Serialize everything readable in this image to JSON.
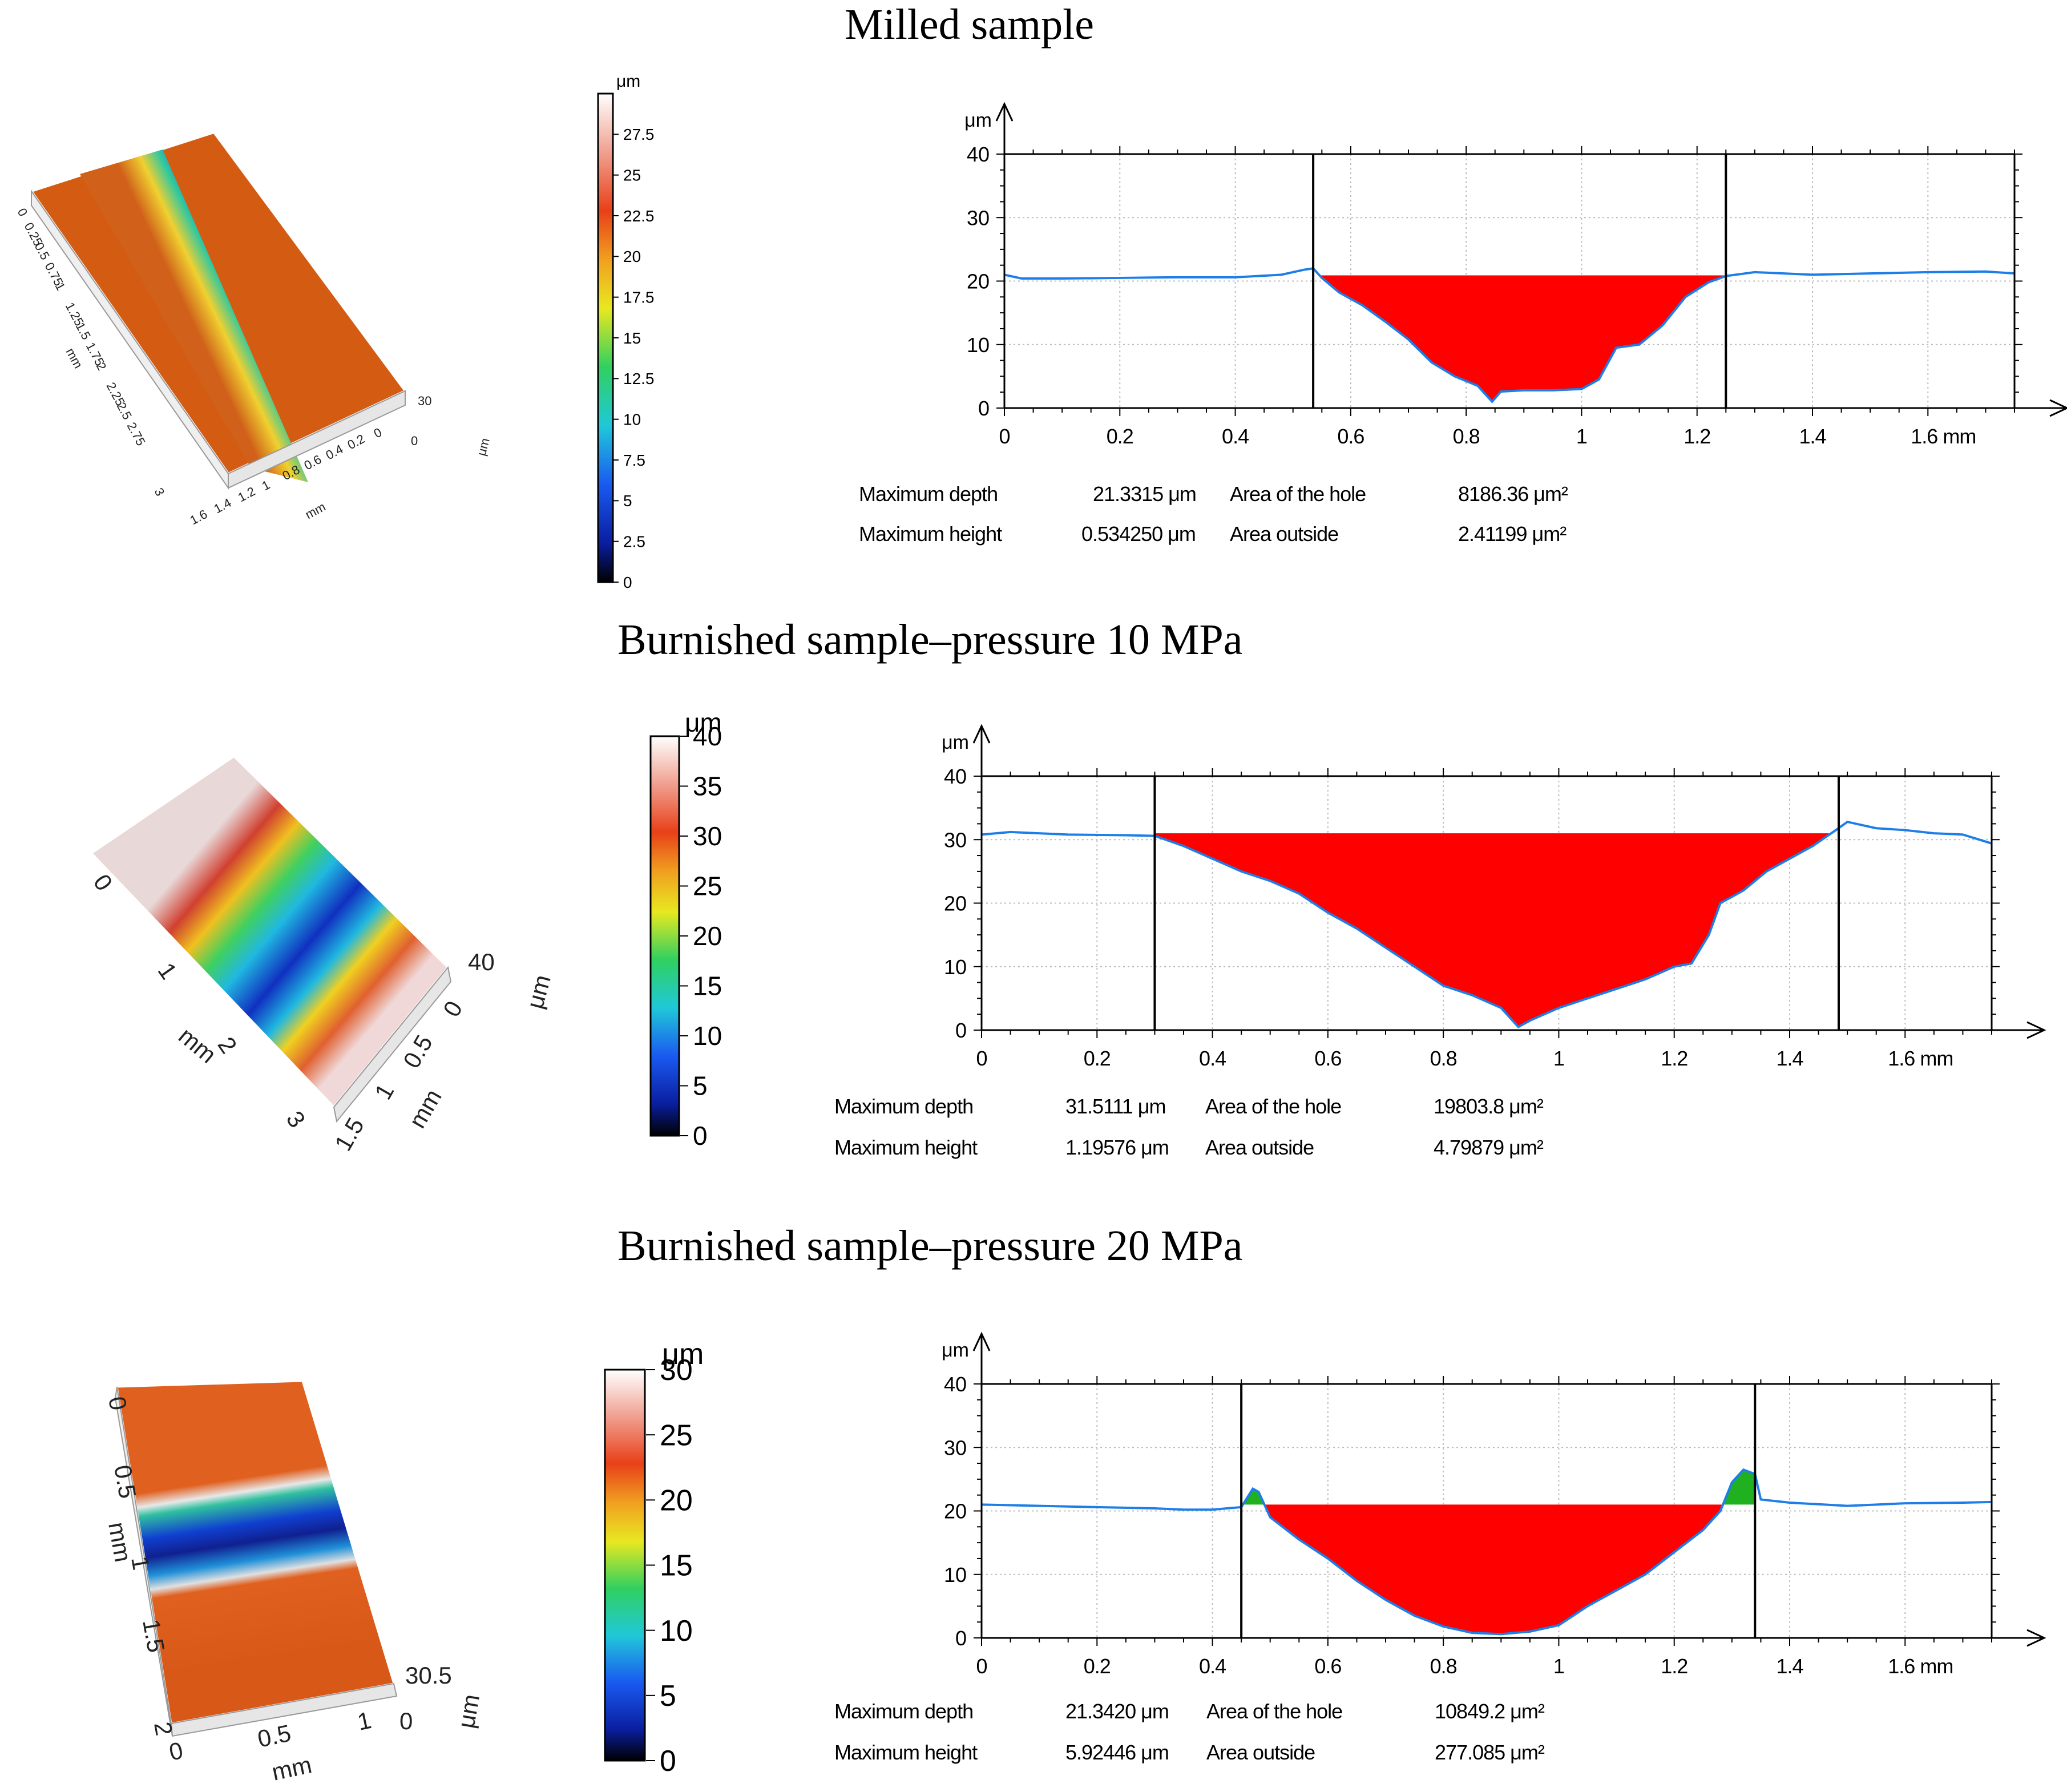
{
  "sections": [
    {
      "title": "Milled sample",
      "surface": {
        "axis_short_label": "mm",
        "axis_long_label": "mm",
        "z_label": "μm",
        "short_ticks": [
          "1.6",
          "1.4",
          "1.2",
          "1",
          "0.8",
          "0.6",
          "0.4",
          "0.2",
          "0"
        ],
        "long_ticks": [
          "0",
          "0.25",
          "0.5",
          "0.75",
          "1",
          "1.25",
          "1.5",
          "1.75",
          "2",
          "2.25",
          "2.5",
          "2.75",
          "3"
        ],
        "z_ticks": [
          "30",
          "0"
        ]
      },
      "scale": {
        "unit": "μm",
        "max": 30,
        "ticks": [
          "27.5",
          "25",
          "22.5",
          "20",
          "17.5",
          "15",
          "12.5",
          "10",
          "7.5",
          "5",
          "2.5",
          "0"
        ]
      },
      "measurements": {
        "rows": [
          {
            "label1": "Maximum depth",
            "value1": "21.3315 μm",
            "label2": "Area of the hole",
            "value2": "8186.36 μm²"
          },
          {
            "label1": "Maximum height",
            "value1": "0.534250 μm",
            "label2": "Area outside",
            "value2": "2.41199 μm²"
          }
        ]
      }
    },
    {
      "title": "Burnished sample–pressure 10 MPa",
      "surface": {
        "axis_short_label": "mm",
        "axis_long_label": "mm",
        "z_label": "μm",
        "short_ticks": [
          "1.5",
          "1",
          "0.5",
          "0"
        ],
        "long_ticks": [
          "0",
          "1",
          "2",
          "3"
        ],
        "z_ticks": [
          "40",
          "0"
        ]
      },
      "scale": {
        "unit": "μm",
        "max": 40,
        "ticks": [
          "40",
          "35",
          "30",
          "25",
          "20",
          "15",
          "10",
          "5",
          "0"
        ]
      },
      "measurements": {
        "rows": [
          {
            "label1": "Maximum depth",
            "value1": "31.5111 μm",
            "label2": "Area of the hole",
            "value2": "19803.8 μm²"
          },
          {
            "label1": "Maximum height",
            "value1": "1.19576 μm",
            "label2": "Area outside",
            "value2": "4.79879 μm²"
          }
        ]
      }
    },
    {
      "title": "Burnished sample–pressure 20 MPa",
      "surface": {
        "axis_short_label": "mm",
        "axis_long_label": "mm",
        "z_label": "μm",
        "short_ticks": [
          "0",
          "0.5",
          "1"
        ],
        "long_ticks": [
          "0",
          "0.5",
          "1",
          "1.5",
          "2"
        ],
        "z_ticks": [
          "30.5",
          "0"
        ]
      },
      "scale": {
        "unit": "μm",
        "max": 30,
        "ticks": [
          "30",
          "25",
          "20",
          "15",
          "10",
          "5",
          "0"
        ]
      },
      "measurements": {
        "rows": [
          {
            "label1": "Maximum depth",
            "value1": "21.3420 μm",
            "label2": "Area of the hole",
            "value2": "10849.2 μm²"
          },
          {
            "label1": "Maximum height",
            "value1": "5.92446 μm",
            "label2": "Area outside",
            "value2": "277.085 μm²"
          }
        ]
      }
    }
  ],
  "chart_data": [
    {
      "type": "area",
      "title": "Milled sample",
      "xlabel": "mm",
      "ylabel": "μm",
      "xlim": [
        0,
        1.75
      ],
      "ylim": [
        0,
        40
      ],
      "x_ticks": [
        "0",
        "0.2",
        "0.4",
        "0.6",
        "0.8",
        "1",
        "1.2",
        "1.4",
        "1.6 mm"
      ],
      "y_ticks": [
        "0",
        "10",
        "20",
        "30",
        "40"
      ],
      "cursors": [
        0.535,
        1.25
      ],
      "reference_level": 20.9,
      "profile": {
        "x": [
          0,
          0.03,
          0.1,
          0.2,
          0.3,
          0.4,
          0.48,
          0.52,
          0.535,
          0.55,
          0.58,
          0.62,
          0.66,
          0.7,
          0.74,
          0.78,
          0.82,
          0.845,
          0.86,
          0.9,
          0.95,
          1.0,
          1.03,
          1.06,
          1.1,
          1.14,
          1.18,
          1.22,
          1.25,
          1.3,
          1.4,
          1.5,
          1.6,
          1.7,
          1.75
        ],
        "y": [
          21.0,
          20.4,
          20.4,
          20.5,
          20.6,
          20.6,
          21.0,
          21.8,
          22.0,
          20.5,
          18.2,
          16.2,
          13.6,
          10.8,
          7.2,
          5.0,
          3.5,
          1.0,
          2.6,
          2.8,
          2.8,
          3.0,
          4.5,
          9.5,
          10.0,
          13.0,
          17.5,
          19.8,
          20.8,
          21.4,
          21.0,
          21.2,
          21.4,
          21.5,
          21.2
        ]
      },
      "outside_regions": []
    },
    {
      "type": "area",
      "title": "Burnished sample–pressure 10 MPa",
      "xlabel": "mm",
      "ylabel": "μm",
      "xlim": [
        0,
        1.75
      ],
      "ylim": [
        0,
        40
      ],
      "x_ticks": [
        "0",
        "0.2",
        "0.4",
        "0.6",
        "0.8",
        "1",
        "1.2",
        "1.4",
        "1.6 mm"
      ],
      "y_ticks": [
        "0",
        "10",
        "20",
        "30",
        "40"
      ],
      "cursors": [
        0.3,
        1.485
      ],
      "reference_level": 31.0,
      "profile": {
        "x": [
          0,
          0.05,
          0.15,
          0.25,
          0.3,
          0.35,
          0.4,
          0.45,
          0.5,
          0.55,
          0.6,
          0.65,
          0.7,
          0.75,
          0.8,
          0.85,
          0.9,
          0.93,
          0.95,
          1.0,
          1.05,
          1.1,
          1.15,
          1.2,
          1.23,
          1.26,
          1.28,
          1.32,
          1.36,
          1.4,
          1.44,
          1.48,
          1.5,
          1.55,
          1.6,
          1.65,
          1.7,
          1.75
        ],
        "y": [
          30.8,
          31.2,
          30.8,
          30.7,
          30.6,
          29.0,
          27.0,
          25.0,
          23.5,
          21.5,
          18.5,
          16.0,
          13.0,
          10.0,
          7.0,
          5.5,
          3.5,
          0.5,
          1.5,
          3.5,
          5.0,
          6.5,
          8.0,
          10.0,
          10.5,
          15.0,
          20.0,
          22.0,
          25.0,
          27.0,
          29.0,
          31.5,
          32.8,
          31.8,
          31.5,
          31.0,
          30.8,
          29.4
        ]
      },
      "outside_regions": []
    },
    {
      "type": "area",
      "title": "Burnished sample–pressure 20 MPa",
      "xlabel": "mm",
      "ylabel": "μm",
      "xlim": [
        0,
        1.75
      ],
      "ylim": [
        0,
        40
      ],
      "x_ticks": [
        "0",
        "0.2",
        "0.4",
        "0.6",
        "0.8",
        "1",
        "1.2",
        "1.4",
        "1.6 mm"
      ],
      "y_ticks": [
        "0",
        "10",
        "20",
        "30",
        "40"
      ],
      "cursors": [
        0.45,
        1.34
      ],
      "reference_level": 21.0,
      "profile": {
        "x": [
          0,
          0.1,
          0.2,
          0.3,
          0.35,
          0.4,
          0.45,
          0.47,
          0.48,
          0.5,
          0.55,
          0.6,
          0.65,
          0.7,
          0.75,
          0.8,
          0.85,
          0.9,
          0.95,
          1.0,
          1.05,
          1.1,
          1.15,
          1.2,
          1.25,
          1.28,
          1.3,
          1.32,
          1.34,
          1.35,
          1.4,
          1.5,
          1.6,
          1.7,
          1.75
        ],
        "y": [
          21.0,
          20.8,
          20.6,
          20.4,
          20.2,
          20.2,
          20.6,
          23.5,
          23.0,
          19.0,
          15.5,
          12.5,
          9.0,
          6.0,
          3.5,
          1.8,
          0.8,
          0.6,
          1.0,
          2.0,
          5.0,
          7.5,
          10.0,
          13.5,
          17.0,
          20.0,
          24.5,
          26.5,
          25.8,
          21.8,
          21.3,
          20.8,
          21.2,
          21.3,
          21.4
        ]
      },
      "outside_regions": [
        [
          0.45,
          0.49
        ],
        [
          1.265,
          1.34
        ]
      ]
    }
  ]
}
